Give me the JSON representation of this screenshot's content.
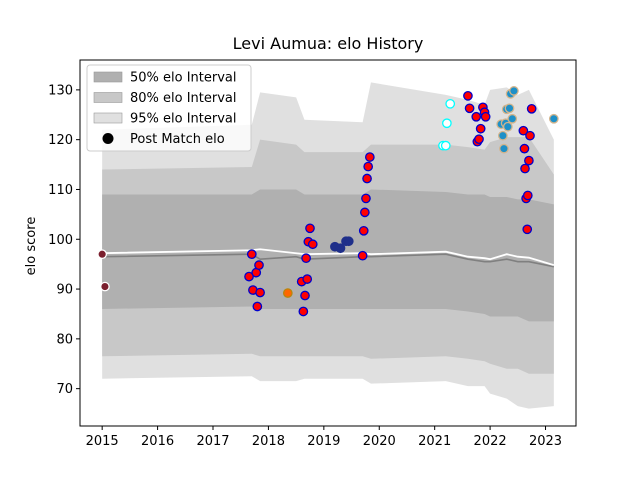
{
  "chart_data": {
    "type": "scatter",
    "title": "Levi Aumua: elo History",
    "xlabel": "",
    "ylabel": "elo score",
    "xlim": [
      2014.6,
      2023.55
    ],
    "ylim": [
      62.5,
      136
    ],
    "x_ticks": [
      2015,
      2016,
      2017,
      2018,
      2019,
      2020,
      2021,
      2022,
      2023
    ],
    "y_ticks": [
      70,
      80,
      90,
      100,
      110,
      120,
      130
    ],
    "grid": false,
    "legend_position": "top-left",
    "legend": [
      {
        "label": "50% elo Interval",
        "kind": "band",
        "color": "#b0b0b0"
      },
      {
        "label": "80% elo Interval",
        "kind": "band",
        "color": "#c8c8c8"
      },
      {
        "label": "95% elo Interval",
        "kind": "band",
        "color": "#e0e0e0"
      },
      {
        "label": "Post Match elo",
        "kind": "marker",
        "color": "#000000"
      }
    ],
    "band_x": [
      2015.0,
      2017.7,
      2017.85,
      2018.5,
      2018.65,
      2019.7,
      2019.85,
      2021.2,
      2021.6,
      2021.9,
      2022.0,
      2022.3,
      2022.5,
      2022.7,
      2023.15
    ],
    "bands": {
      "p95": {
        "lower": [
          72.0,
          72.5,
          71.5,
          71.5,
          72.0,
          72.0,
          71.0,
          71.5,
          70.5,
          70.5,
          69.0,
          68.0,
          66.5,
          66.0,
          66.5
        ],
        "upper": [
          122.0,
          123.0,
          129.5,
          128.5,
          124.0,
          123.5,
          131.5,
          129.0,
          128.0,
          127.0,
          130.0,
          130.5,
          129.0,
          130.0,
          120.0
        ]
      },
      "p80": {
        "lower": [
          76.5,
          77.0,
          76.5,
          76.5,
          76.5,
          76.5,
          76.0,
          76.5,
          76.0,
          75.5,
          75.0,
          74.0,
          74.0,
          73.0,
          73.0
        ],
        "upper": [
          114.0,
          114.5,
          120.0,
          119.0,
          117.5,
          117.5,
          119.0,
          119.0,
          118.5,
          118.0,
          119.5,
          120.5,
          120.5,
          120.5,
          113.0
        ]
      },
      "p50": {
        "lower": [
          86.0,
          86.5,
          86.0,
          86.0,
          86.0,
          86.0,
          86.0,
          86.0,
          85.5,
          85.0,
          84.5,
          84.5,
          84.5,
          83.5,
          83.5
        ],
        "upper": [
          109.0,
          109.0,
          110.0,
          110.0,
          109.0,
          109.0,
          110.0,
          109.5,
          109.0,
          109.0,
          108.5,
          108.5,
          108.0,
          108.0,
          107.0
        ]
      }
    },
    "median_line": [
      {
        "x": 2015.0,
        "y": 96.5
      },
      {
        "x": 2017.7,
        "y": 97.0
      },
      {
        "x": 2017.85,
        "y": 96.0
      },
      {
        "x": 2018.5,
        "y": 96.5
      },
      {
        "x": 2018.65,
        "y": 96.0
      },
      {
        "x": 2019.7,
        "y": 96.5
      },
      {
        "x": 2019.85,
        "y": 96.5
      },
      {
        "x": 2021.2,
        "y": 97.0
      },
      {
        "x": 2021.6,
        "y": 96.0
      },
      {
        "x": 2021.9,
        "y": 95.5
      },
      {
        "x": 2022.0,
        "y": 95.5
      },
      {
        "x": 2022.3,
        "y": 96.0
      },
      {
        "x": 2022.5,
        "y": 95.5
      },
      {
        "x": 2022.7,
        "y": 95.5
      },
      {
        "x": 2023.15,
        "y": 94.5
      }
    ],
    "mean_line": [
      {
        "x": 2015.0,
        "y": 97.2
      },
      {
        "x": 2017.7,
        "y": 97.8
      },
      {
        "x": 2017.85,
        "y": 98.0
      },
      {
        "x": 2018.5,
        "y": 97.2
      },
      {
        "x": 2018.65,
        "y": 97.0
      },
      {
        "x": 2019.7,
        "y": 97.2
      },
      {
        "x": 2019.85,
        "y": 97.0
      },
      {
        "x": 2021.2,
        "y": 97.5
      },
      {
        "x": 2021.6,
        "y": 96.5
      },
      {
        "x": 2021.9,
        "y": 96.2
      },
      {
        "x": 2022.0,
        "y": 96.0
      },
      {
        "x": 2022.3,
        "y": 97.0
      },
      {
        "x": 2022.5,
        "y": 96.5
      },
      {
        "x": 2022.7,
        "y": 96.3
      },
      {
        "x": 2023.15,
        "y": 94.8
      }
    ],
    "points": [
      {
        "x": 2015.0,
        "y": 97.0,
        "fill": "#7b1f2e",
        "edge": "#ffffff"
      },
      {
        "x": 2015.05,
        "y": 90.5,
        "fill": "#7b1f2e",
        "edge": "#ffffff"
      },
      {
        "x": 2017.65,
        "y": 92.5,
        "fill": "#ff0000",
        "edge": "#0000cc"
      },
      {
        "x": 2017.7,
        "y": 97.0,
        "fill": "#ff0000",
        "edge": "#0000cc"
      },
      {
        "x": 2017.72,
        "y": 89.8,
        "fill": "#ff0000",
        "edge": "#0000cc"
      },
      {
        "x": 2017.78,
        "y": 93.3,
        "fill": "#ff0000",
        "edge": "#0000cc"
      },
      {
        "x": 2017.8,
        "y": 86.5,
        "fill": "#ff0000",
        "edge": "#0000cc"
      },
      {
        "x": 2017.83,
        "y": 94.8,
        "fill": "#ff0000",
        "edge": "#0000cc"
      },
      {
        "x": 2017.85,
        "y": 89.3,
        "fill": "#ff0000",
        "edge": "#0000cc"
      },
      {
        "x": 2018.35,
        "y": 89.2,
        "fill": "#ff6600",
        "edge": "#b8860b"
      },
      {
        "x": 2018.6,
        "y": 91.5,
        "fill": "#ff0000",
        "edge": "#0000cc"
      },
      {
        "x": 2018.63,
        "y": 85.5,
        "fill": "#ff0000",
        "edge": "#0000cc"
      },
      {
        "x": 2018.66,
        "y": 88.7,
        "fill": "#ff0000",
        "edge": "#0000cc"
      },
      {
        "x": 2018.68,
        "y": 96.2,
        "fill": "#ff0000",
        "edge": "#0000cc"
      },
      {
        "x": 2018.7,
        "y": 92.0,
        "fill": "#ff0000",
        "edge": "#0000cc"
      },
      {
        "x": 2018.72,
        "y": 99.5,
        "fill": "#ff0000",
        "edge": "#0000cc"
      },
      {
        "x": 2018.75,
        "y": 102.2,
        "fill": "#ff0000",
        "edge": "#0000cc"
      },
      {
        "x": 2018.8,
        "y": 99.0,
        "fill": "#ff0000",
        "edge": "#0000cc"
      },
      {
        "x": 2019.2,
        "y": 98.5,
        "fill": "#1f2f8a",
        "edge": "#1f2f8a"
      },
      {
        "x": 2019.3,
        "y": 98.2,
        "fill": "#1f2f8a",
        "edge": "#1f2f8a"
      },
      {
        "x": 2019.4,
        "y": 99.6,
        "fill": "#1f2f8a",
        "edge": "#1f2f8a"
      },
      {
        "x": 2019.45,
        "y": 99.6,
        "fill": "#1f2f8a",
        "edge": "#1f2f8a"
      },
      {
        "x": 2019.7,
        "y": 96.7,
        "fill": "#ff0000",
        "edge": "#0000cc"
      },
      {
        "x": 2019.72,
        "y": 101.7,
        "fill": "#ff0000",
        "edge": "#0000cc"
      },
      {
        "x": 2019.74,
        "y": 105.4,
        "fill": "#ff0000",
        "edge": "#0000cc"
      },
      {
        "x": 2019.76,
        "y": 108.2,
        "fill": "#ff0000",
        "edge": "#0000cc"
      },
      {
        "x": 2019.78,
        "y": 112.2,
        "fill": "#ff0000",
        "edge": "#0000cc"
      },
      {
        "x": 2019.8,
        "y": 114.6,
        "fill": "#ff0000",
        "edge": "#0000cc"
      },
      {
        "x": 2019.83,
        "y": 116.5,
        "fill": "#ff0000",
        "edge": "#0000cc"
      },
      {
        "x": 2021.15,
        "y": 118.8,
        "fill": "#ffffff",
        "edge": "#00ffff"
      },
      {
        "x": 2021.2,
        "y": 118.8,
        "fill": "#ffffff",
        "edge": "#00ffff"
      },
      {
        "x": 2021.22,
        "y": 123.3,
        "fill": "#ffffff",
        "edge": "#00ffff"
      },
      {
        "x": 2021.28,
        "y": 127.2,
        "fill": "#ffffff",
        "edge": "#00ffff"
      },
      {
        "x": 2021.6,
        "y": 128.8,
        "fill": "#ff0000",
        "edge": "#0000cc"
      },
      {
        "x": 2021.63,
        "y": 126.3,
        "fill": "#ff0000",
        "edge": "#0000cc"
      },
      {
        "x": 2021.75,
        "y": 124.6,
        "fill": "#ff0000",
        "edge": "#0000cc"
      },
      {
        "x": 2021.77,
        "y": 119.6,
        "fill": "#ff0000",
        "edge": "#0000cc"
      },
      {
        "x": 2021.8,
        "y": 120.1,
        "fill": "#ff0000",
        "edge": "#0000cc"
      },
      {
        "x": 2021.83,
        "y": 122.2,
        "fill": "#ff0000",
        "edge": "#0000cc"
      },
      {
        "x": 2021.87,
        "y": 126.5,
        "fill": "#ff0000",
        "edge": "#0000cc"
      },
      {
        "x": 2021.9,
        "y": 125.5,
        "fill": "#ff0000",
        "edge": "#0000cc"
      },
      {
        "x": 2021.92,
        "y": 124.6,
        "fill": "#ff0000",
        "edge": "#0000cc"
      },
      {
        "x": 2022.2,
        "y": 123.1,
        "fill": "#1e90c8",
        "edge": "#d2b48c"
      },
      {
        "x": 2022.23,
        "y": 120.8,
        "fill": "#1e90c8",
        "edge": "#d2b48c"
      },
      {
        "x": 2022.25,
        "y": 118.2,
        "fill": "#1e90c8",
        "edge": "#d2b48c"
      },
      {
        "x": 2022.28,
        "y": 123.3,
        "fill": "#1e90c8",
        "edge": "#d2b48c"
      },
      {
        "x": 2022.3,
        "y": 126.1,
        "fill": "#1e90c8",
        "edge": "#d2b48c"
      },
      {
        "x": 2022.32,
        "y": 122.6,
        "fill": "#1e90c8",
        "edge": "#d2b48c"
      },
      {
        "x": 2022.35,
        "y": 126.3,
        "fill": "#1e90c8",
        "edge": "#d2b48c"
      },
      {
        "x": 2022.37,
        "y": 129.2,
        "fill": "#1e90c8",
        "edge": "#d2b48c"
      },
      {
        "x": 2022.4,
        "y": 124.2,
        "fill": "#1e90c8",
        "edge": "#d2b48c"
      },
      {
        "x": 2022.43,
        "y": 129.8,
        "fill": "#1e90c8",
        "edge": "#d2b48c"
      },
      {
        "x": 2022.6,
        "y": 121.8,
        "fill": "#ff0000",
        "edge": "#0000cc"
      },
      {
        "x": 2022.62,
        "y": 118.2,
        "fill": "#ff0000",
        "edge": "#0000cc"
      },
      {
        "x": 2022.63,
        "y": 114.2,
        "fill": "#ff0000",
        "edge": "#0000cc"
      },
      {
        "x": 2022.65,
        "y": 108.2,
        "fill": "#ff0000",
        "edge": "#0000cc"
      },
      {
        "x": 2022.67,
        "y": 102.0,
        "fill": "#ff0000",
        "edge": "#0000cc"
      },
      {
        "x": 2022.68,
        "y": 108.8,
        "fill": "#ff0000",
        "edge": "#0000cc"
      },
      {
        "x": 2022.7,
        "y": 115.8,
        "fill": "#ff0000",
        "edge": "#0000cc"
      },
      {
        "x": 2022.72,
        "y": 120.8,
        "fill": "#ff0000",
        "edge": "#0000cc"
      },
      {
        "x": 2022.75,
        "y": 126.2,
        "fill": "#ff0000",
        "edge": "#0000cc"
      },
      {
        "x": 2023.15,
        "y": 124.2,
        "fill": "#1e90c8",
        "edge": "#d2b48c"
      }
    ]
  }
}
